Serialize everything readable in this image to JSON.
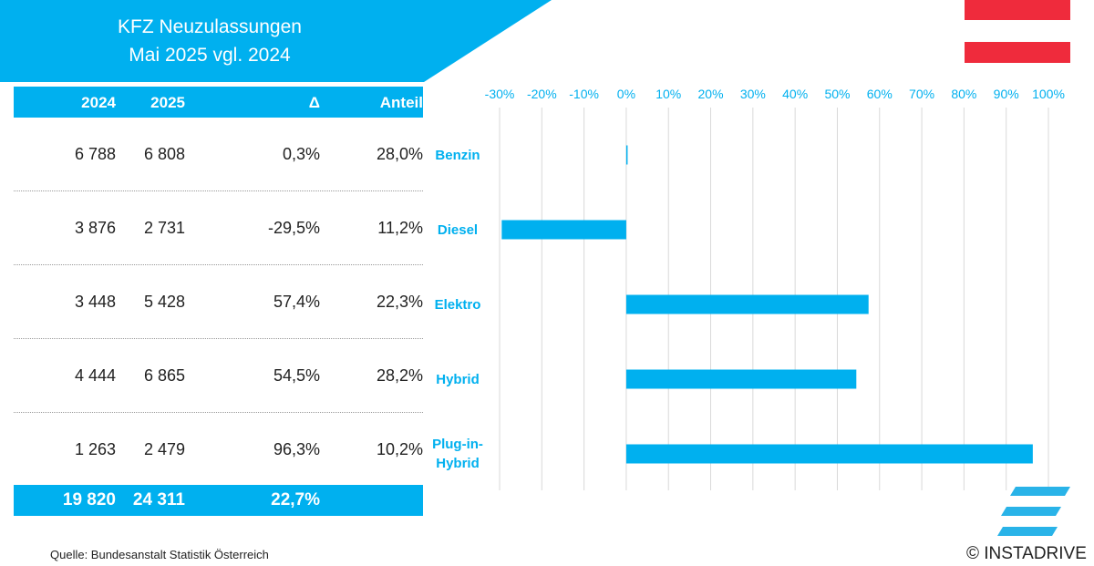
{
  "header": {
    "title_line1": "KFZ Neuzulassungen",
    "title_line2": "Mai 2025 vgl. 2024"
  },
  "table": {
    "columns": [
      "2024",
      "2025",
      "Δ",
      "Anteil"
    ],
    "rows": [
      {
        "y2024": "6 788",
        "y2025": "6 808",
        "delta": "0,3%",
        "share": "28,0%"
      },
      {
        "y2024": "3 876",
        "y2025": "2 731",
        "delta": "-29,5%",
        "share": "11,2%"
      },
      {
        "y2024": "3 448",
        "y2025": "5 428",
        "delta": "57,4%",
        "share": "22,3%"
      },
      {
        "y2024": "4 444",
        "y2025": "6 865",
        "delta": "54,5%",
        "share": "28,2%"
      },
      {
        "y2024": "1 263",
        "y2025": "2 479",
        "delta": "96,3%",
        "share": "10,2%"
      }
    ],
    "total": {
      "y2024": "19 820",
      "y2025": "24 311",
      "delta": "22,7%"
    }
  },
  "chart_data": {
    "type": "bar",
    "orientation": "horizontal",
    "categories": [
      "Benzin",
      "Diesel",
      "Elektro",
      "Hybrid",
      "Plug-in-Hybrid"
    ],
    "category_labels": [
      [
        "Benzin"
      ],
      [
        "Diesel"
      ],
      [
        "Elektro"
      ],
      [
        "Hybrid"
      ],
      [
        "Plug-in-",
        "Hybrid"
      ]
    ],
    "values": [
      0.3,
      -29.5,
      57.4,
      54.5,
      96.3
    ],
    "xlim": [
      -30,
      100
    ],
    "xticks": [
      -30,
      -20,
      -10,
      0,
      10,
      20,
      30,
      40,
      50,
      60,
      70,
      80,
      90,
      100
    ],
    "xtick_labels": [
      "-30%",
      "-20%",
      "-10%",
      "0%",
      "10%",
      "20%",
      "30%",
      "40%",
      "50%",
      "60%",
      "70%",
      "80%",
      "90%",
      "100%"
    ],
    "xaxis_position": "top",
    "grid": true,
    "bar_color": "#00b0ef"
  },
  "colors": {
    "accent": "#00b0ef",
    "flag_red": "#ef2b3c"
  },
  "footer": {
    "source": "Quelle: Bundesanstalt Statistik Österreich",
    "copyright": "© INSTADRIVE"
  }
}
